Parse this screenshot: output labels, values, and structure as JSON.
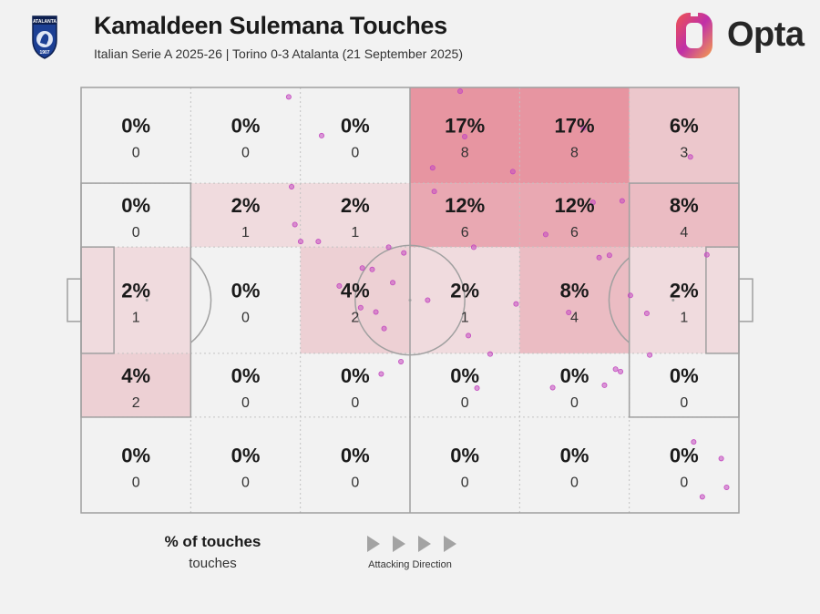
{
  "header": {
    "title": "Kamaldeen Sulemana Touches",
    "subtitle": "Italian Serie A 2025-26 | Torino 0-3 Atalanta (21 September 2025)",
    "crest_text": "ATALANTA",
    "crest_year": "1907",
    "brand": "Opta"
  },
  "legend": {
    "title": "% of touches",
    "subtitle": "touches",
    "direction_label": "Attacking Direction"
  },
  "colors": {
    "background": "#f2f2f2",
    "pitch_line": "#a0a0a0",
    "heat": "#e0566a",
    "dot": "#c44ac0",
    "opta_gradient": [
      "#f0544f",
      "#c030a8",
      "#f6a14a"
    ]
  },
  "chart_data": {
    "type": "heatmap",
    "title": "Kamaldeen Sulemana Touches",
    "columns": 6,
    "rows": 5,
    "attacking_direction": "left-to-right",
    "cells": [
      [
        {
          "pct": "0%",
          "count": 0
        },
        {
          "pct": "0%",
          "count": 0
        },
        {
          "pct": "0%",
          "count": 0
        },
        {
          "pct": "17%",
          "count": 8
        },
        {
          "pct": "17%",
          "count": 8
        },
        {
          "pct": "6%",
          "count": 3
        }
      ],
      [
        {
          "pct": "0%",
          "count": 0
        },
        {
          "pct": "2%",
          "count": 1
        },
        {
          "pct": "2%",
          "count": 1
        },
        {
          "pct": "12%",
          "count": 6
        },
        {
          "pct": "12%",
          "count": 6
        },
        {
          "pct": "8%",
          "count": 4
        }
      ],
      [
        {
          "pct": "2%",
          "count": 1
        },
        {
          "pct": "0%",
          "count": 0
        },
        {
          "pct": "4%",
          "count": 2
        },
        {
          "pct": "2%",
          "count": 1
        },
        {
          "pct": "8%",
          "count": 4
        },
        {
          "pct": "2%",
          "count": 1
        }
      ],
      [
        {
          "pct": "4%",
          "count": 2
        },
        {
          "pct": "0%",
          "count": 0
        },
        {
          "pct": "0%",
          "count": 0
        },
        {
          "pct": "0%",
          "count": 0
        },
        {
          "pct": "0%",
          "count": 0
        },
        {
          "pct": "0%",
          "count": 0
        }
      ],
      [
        {
          "pct": "0%",
          "count": 0
        },
        {
          "pct": "0%",
          "count": 0
        },
        {
          "pct": "0%",
          "count": 0
        },
        {
          "pct": "0%",
          "count": 0
        },
        {
          "pct": "0%",
          "count": 0
        },
        {
          "pct": "0%",
          "count": 0
        }
      ]
    ],
    "touch_points": [
      [
        50.5,
        2.0
      ],
      [
        58.5,
        10.2
      ],
      [
        51.2,
        21.0
      ],
      [
        52.0,
        29.0
      ],
      [
        53.4,
        32.6
      ],
      [
        57.7,
        32.6
      ],
      [
        62.8,
        42.0
      ],
      [
        68.0,
        46.6
      ],
      [
        68.4,
        38.2
      ],
      [
        70.8,
        38.5
      ],
      [
        71.7,
        47.5
      ],
      [
        73.0,
        60.6
      ],
      [
        73.7,
        51.0
      ],
      [
        74.8,
        33.8
      ],
      [
        75.8,
        41.3
      ],
      [
        78.5,
        35.0
      ],
      [
        77.8,
        58.0
      ],
      [
        84.3,
        45.0
      ],
      [
        85.5,
        17.0
      ],
      [
        85.9,
        22.0
      ],
      [
        92.2,
        0.8
      ],
      [
        93.3,
        10.4
      ],
      [
        94.2,
        52.5
      ],
      [
        95.5,
        33.8
      ],
      [
        96.3,
        63.6
      ],
      [
        99.5,
        56.4
      ],
      [
        105.0,
        17.8
      ],
      [
        105.8,
        45.8
      ],
      [
        113.0,
        31.1
      ],
      [
        114.7,
        63.5
      ],
      [
        118.6,
        47.6
      ],
      [
        122.2,
        8.6
      ],
      [
        124.5,
        24.3
      ],
      [
        126.0,
        36.0
      ],
      [
        127.3,
        63.0
      ],
      [
        128.5,
        35.5
      ],
      [
        130.0,
        59.6
      ],
      [
        131.2,
        60.1
      ],
      [
        131.6,
        24.0
      ],
      [
        133.6,
        44.0
      ],
      [
        138.3,
        56.6
      ],
      [
        137.6,
        47.8
      ],
      [
        148.2,
        14.7
      ],
      [
        152.2,
        35.4
      ],
      [
        149.0,
        75.0
      ],
      [
        151.1,
        86.6
      ],
      [
        155.7,
        78.5
      ],
      [
        157.0,
        84.6
      ]
    ]
  }
}
